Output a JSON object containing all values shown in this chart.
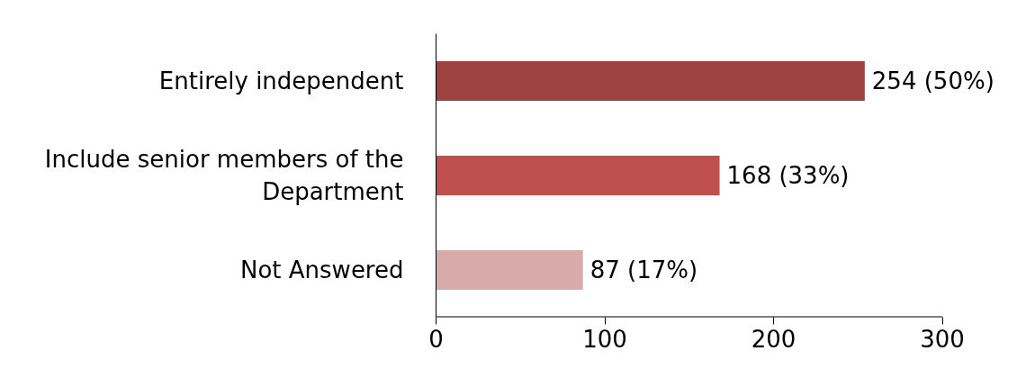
{
  "chart_data": {
    "type": "bar",
    "orientation": "horizontal",
    "categories": [
      "Entirely independent",
      "Include senior members of the Department",
      "Not Answered"
    ],
    "values": [
      254,
      168,
      87
    ],
    "colors": [
      "#9e4141",
      "#c0504d",
      "#d9aaaa"
    ],
    "value_labels": [
      "254 (50%)",
      "168 (33%)",
      "87 (17%)"
    ],
    "xlim": [
      0,
      300
    ],
    "xticks": [
      0,
      100,
      200,
      300
    ],
    "grid": false
  }
}
